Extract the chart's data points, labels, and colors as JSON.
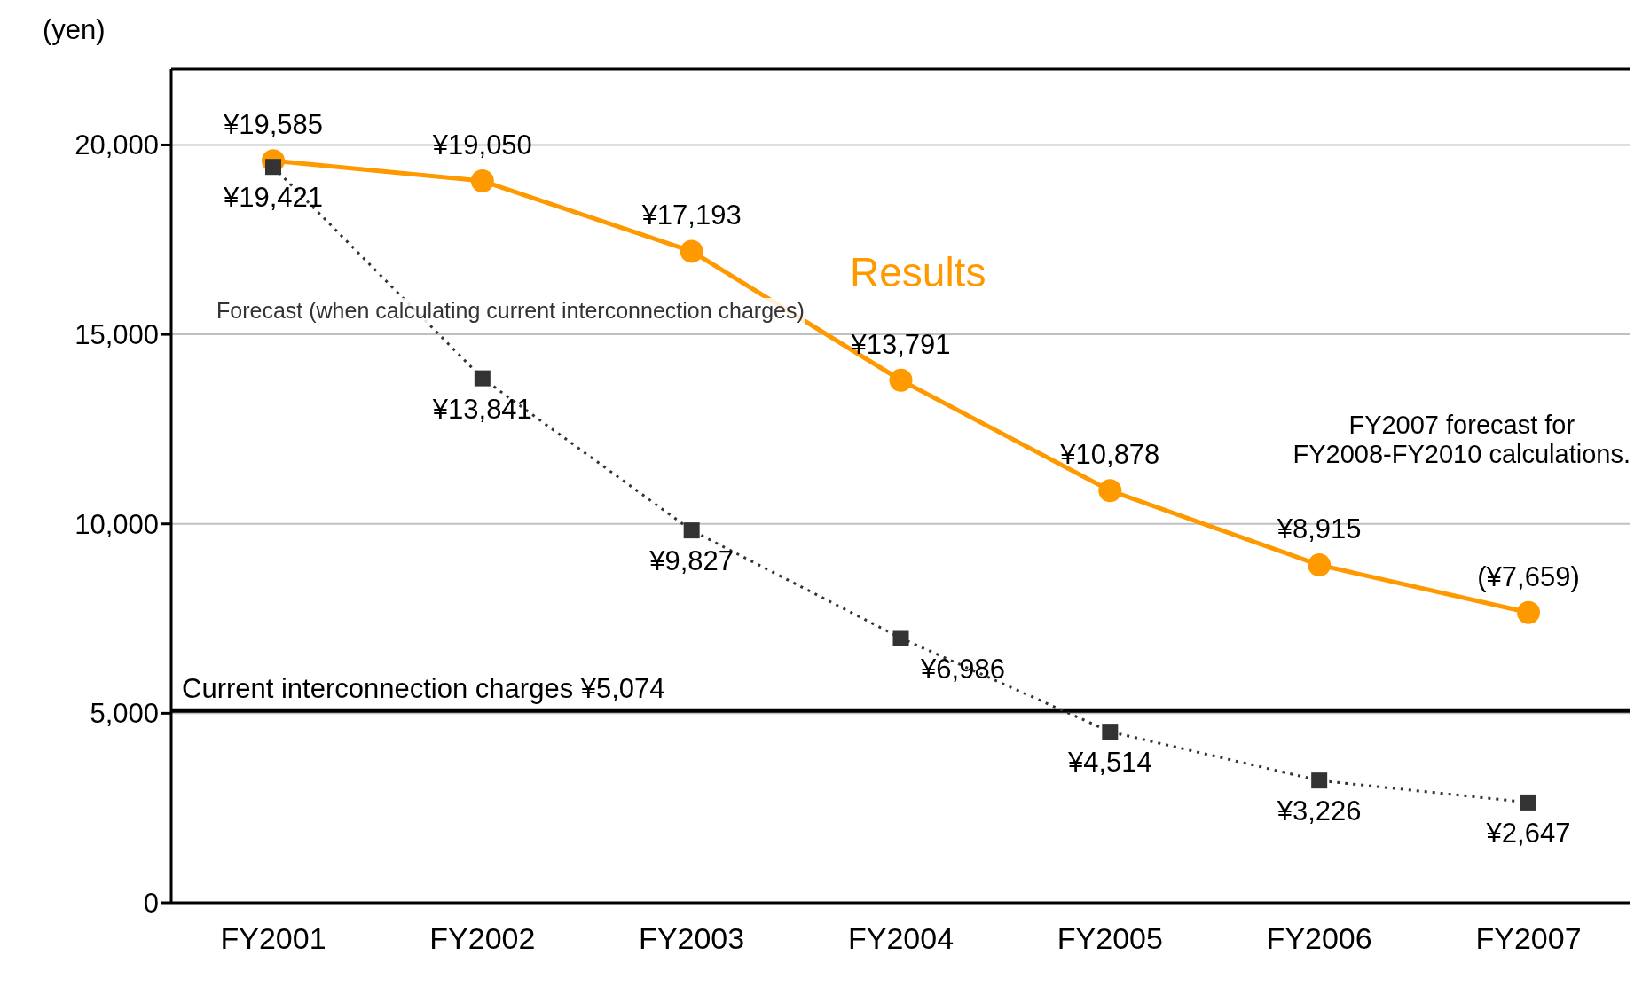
{
  "chart_data": {
    "type": "line",
    "ylabel": "(yen)",
    "categories": [
      "FY2001",
      "FY2002",
      "FY2003",
      "FY2004",
      "FY2005",
      "FY2006",
      "FY2007"
    ],
    "series": [
      {
        "name": "Results",
        "color": "#ff9900",
        "marker": "circle",
        "line_style": "solid",
        "values": [
          19585,
          19050,
          17193,
          13791,
          10878,
          8915,
          7659
        ],
        "value_labels": [
          "¥19,585",
          "¥19,050",
          "¥17,193",
          "¥13,791",
          "¥10,878",
          "¥8,915",
          "(¥7,659)"
        ]
      },
      {
        "name": "Forecast (when calculating current interconnection charges)",
        "color": "#333333",
        "marker": "square",
        "line_style": "dotted",
        "values": [
          19421,
          13841,
          9827,
          6986,
          4514,
          3226,
          2647
        ],
        "value_labels": [
          "¥19,421",
          "¥13,841",
          "¥9,827",
          "¥6,986",
          "¥4,514",
          "¥3,226",
          "¥2,647"
        ]
      }
    ],
    "ylim": [
      0,
      22000
    ],
    "yticks": [
      {
        "value": 0,
        "label": "0"
      },
      {
        "value": 5000,
        "label": "5,000"
      },
      {
        "value": 10000,
        "label": "10,000"
      },
      {
        "value": 15000,
        "label": "15,000"
      },
      {
        "value": 20000,
        "label": "20,000"
      }
    ],
    "grid": "y",
    "legend": false,
    "ref_lines": [
      {
        "axis": "y",
        "value": 5074,
        "label": "Current interconnection charges ¥5,074",
        "color": "#000000"
      }
    ],
    "annotations": [
      "FY2007 forecast for\nFY2008-FY2010 calculations."
    ]
  }
}
